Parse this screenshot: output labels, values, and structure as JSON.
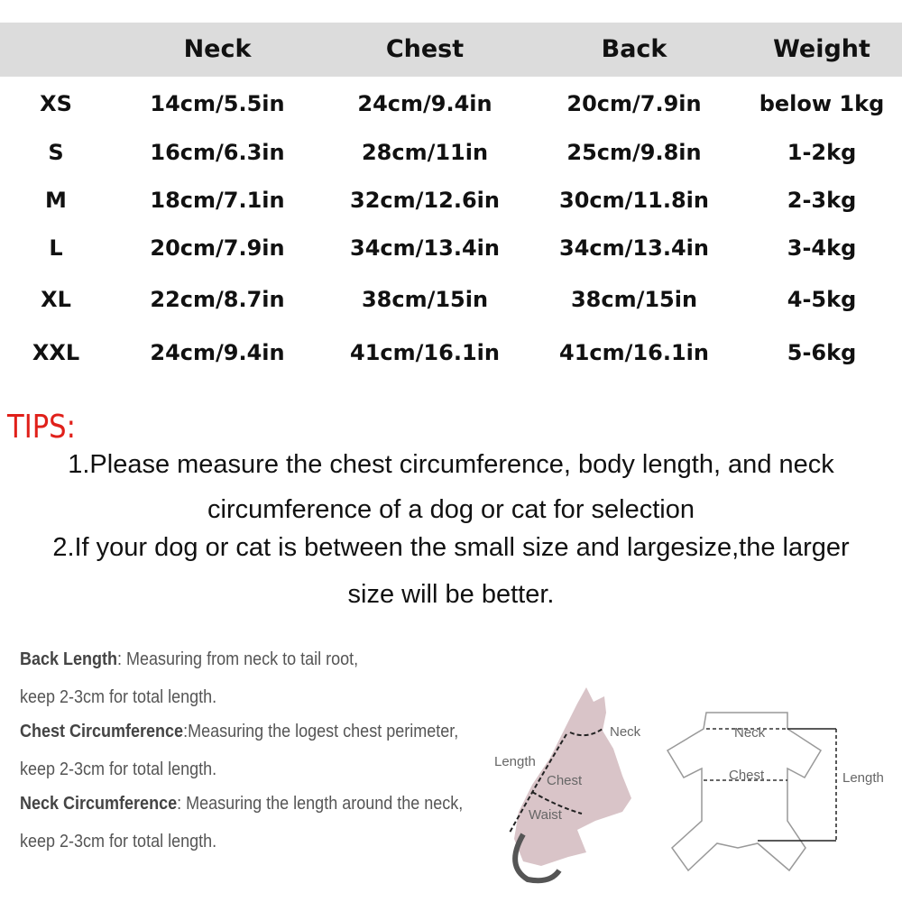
{
  "table": {
    "headers": [
      "",
      "Neck",
      "Chest",
      "Back",
      "Weight"
    ],
    "rows": [
      [
        "XS",
        "14cm/5.5in",
        "24cm/9.4in",
        "20cm/7.9in",
        "below 1kg"
      ],
      [
        "S",
        "16cm/6.3in",
        "28cm/11in",
        "25cm/9.8in",
        "1-2kg"
      ],
      [
        "M",
        "18cm/7.1in",
        "32cm/12.6in",
        "30cm/11.8in",
        "2-3kg"
      ],
      [
        "L",
        "20cm/7.9in",
        "34cm/13.4in",
        "34cm/13.4in",
        "3-4kg"
      ],
      [
        "XL",
        "22cm/8.7in",
        "38cm/15in",
        "38cm/15in",
        "4-5kg"
      ],
      [
        "XXL",
        "24cm/9.4in",
        "41cm/16.1in",
        "41cm/16.1in",
        "5-6kg"
      ]
    ]
  },
  "tips": {
    "title": "TIPS:",
    "lines": [
      "1.Please measure the chest circumference, body length, and neck",
      "circumference of a dog or cat for selection",
      "2.If your dog or cat is between the small size and largesize,the larger",
      "size will be better."
    ]
  },
  "definitions": [
    {
      "term": "Back Length",
      "text": ":  Measuring from neck to tail root,",
      "cont": "keep 2-3cm for total length."
    },
    {
      "term": "Chest Circumference",
      "text": ":Measuring the logest chest perimeter,",
      "cont": "keep 2-3cm for total length."
    },
    {
      "term": "Neck Circumference",
      "text": ": Measuring the length around the neck,",
      "cont": "keep 2-3cm for total length."
    }
  ],
  "diagram": {
    "cat_labels": {
      "neck": "Neck",
      "length": "Length",
      "chest": "Chest",
      "waist": "Waist"
    },
    "garment_labels": {
      "neck": "Neck",
      "chest": "Chest",
      "length": "Length"
    }
  },
  "colors": {
    "header_band": "#dcdcdc",
    "tips_title": "#e0201a"
  }
}
